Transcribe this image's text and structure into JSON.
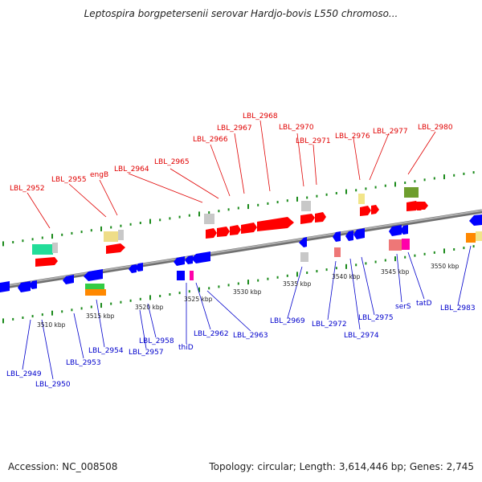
{
  "title": "Leptospira borgpetersenii serovar Hardjo-bovis L550 chromoso...",
  "footer": {
    "accession": "Accession: NC_008508",
    "summary": "Topology: circular; Length: 3,614,446 bp; Genes: 2,745"
  },
  "kbp_labels": [
    "3510 kbp",
    "3515 kbp",
    "3520 kbp",
    "3525 kbp",
    "3530 kbp",
    "3535 kbp",
    "3540 kbp",
    "3545 kbp",
    "3550 kbp"
  ],
  "top_labels": [
    "LBL_2952",
    "LBL_2955",
    "engB",
    "LBL_2964",
    "LBL_2965",
    "LBL_2966",
    "LBL_2967",
    "LBL_2968",
    "LBL_2970",
    "LBL_2971",
    "LBL_2976",
    "LBL_2977",
    "LBL_2980"
  ],
  "bottom_labels": [
    "LBL_2949",
    "LBL_2950",
    "LBL_2953",
    "LBL_2954",
    "LBL_2957",
    "LBL_2958",
    "thiD",
    "LBL_2962",
    "LBL_2963",
    "LBL_2969",
    "LBL_2972",
    "LBL_2974",
    "LBL_2975",
    "serS",
    "tatD",
    "LBL_2983"
  ],
  "colors": {
    "forward_gene": "#ff0000",
    "reverse_gene": "#0000ff",
    "forward_label": "#e00000",
    "reverse_label": "#0000cc",
    "backbone": "#888888",
    "tick": "#1a8a1a"
  }
}
